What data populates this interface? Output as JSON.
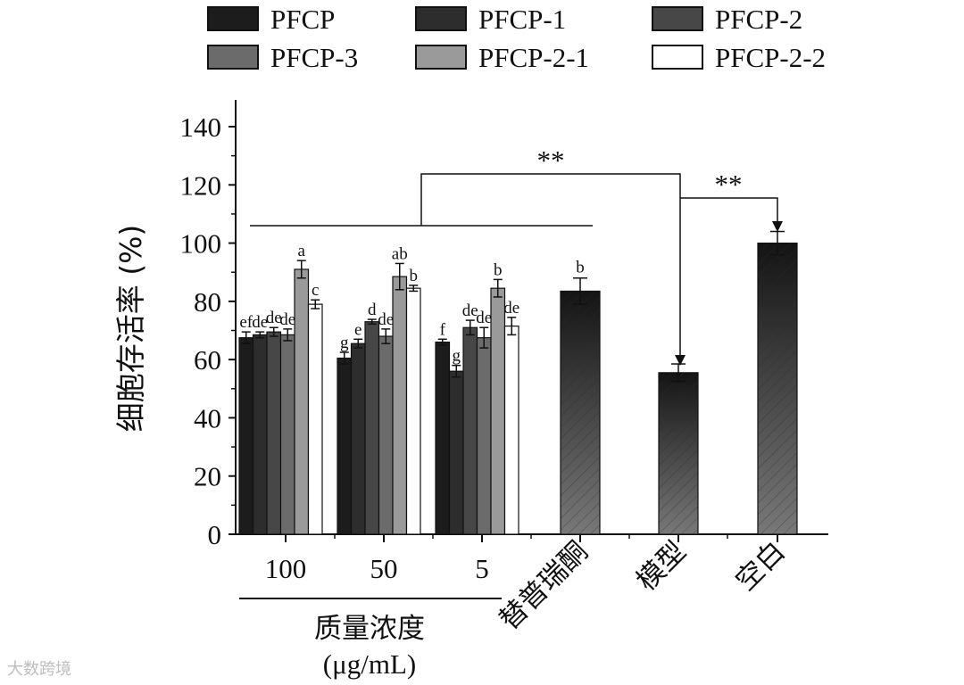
{
  "chart_data": {
    "type": "bar",
    "ylabel": "细胞存活率 (%)",
    "ylim": [
      0,
      140
    ],
    "yticks": [
      0,
      20,
      40,
      60,
      80,
      100,
      120,
      140
    ],
    "group_title": [
      "质量浓度",
      "(μg/mL)"
    ],
    "legend": [
      "PFCP",
      "PFCP-1",
      "PFCP-2",
      "PFCP-3",
      "PFCP-2-1",
      "PFCP-2-2"
    ],
    "legend_colors": [
      "#1c1c1c",
      "#2d2d2d",
      "#474747",
      "#6b6b6b",
      "#9a9a9a",
      "#ffffff"
    ],
    "groups": [
      {
        "label": "100",
        "values": [
          67.5,
          68.5,
          69.5,
          68.5,
          91,
          79
        ],
        "errors": [
          2,
          1,
          1.5,
          2,
          3,
          1.5
        ],
        "letters": [
          "ef",
          "de",
          "de",
          "de",
          "a",
          "c"
        ]
      },
      {
        "label": "50",
        "values": [
          60.5,
          65.5,
          73,
          68,
          88.5,
          84.5
        ],
        "errors": [
          2,
          1.5,
          0.8,
          2.5,
          4.5,
          1
        ],
        "letters": [
          "g",
          "e",
          "d",
          "de",
          "ab",
          "b"
        ]
      },
      {
        "label": "5",
        "values": [
          66,
          56,
          71,
          67.5,
          84.5,
          71.5
        ],
        "errors": [
          1,
          2,
          2.5,
          3.5,
          3,
          3
        ],
        "letters": [
          "f",
          "g",
          "de",
          "de",
          "b",
          "de"
        ]
      }
    ],
    "single_bars": [
      {
        "label": "替普瑞酮",
        "value": 83.5,
        "error": 4.5,
        "letter": "b"
      },
      {
        "label": "模型",
        "value": 55.5,
        "error": 3,
        "letter": ""
      },
      {
        "label": "空白",
        "value": 100,
        "error": 4,
        "letter": ""
      }
    ],
    "significance": [
      {
        "text": "**",
        "between": "treatment groups vs 模型"
      },
      {
        "text": "**",
        "between": "模型 vs 空白"
      }
    ]
  },
  "watermark": "大数跨境"
}
